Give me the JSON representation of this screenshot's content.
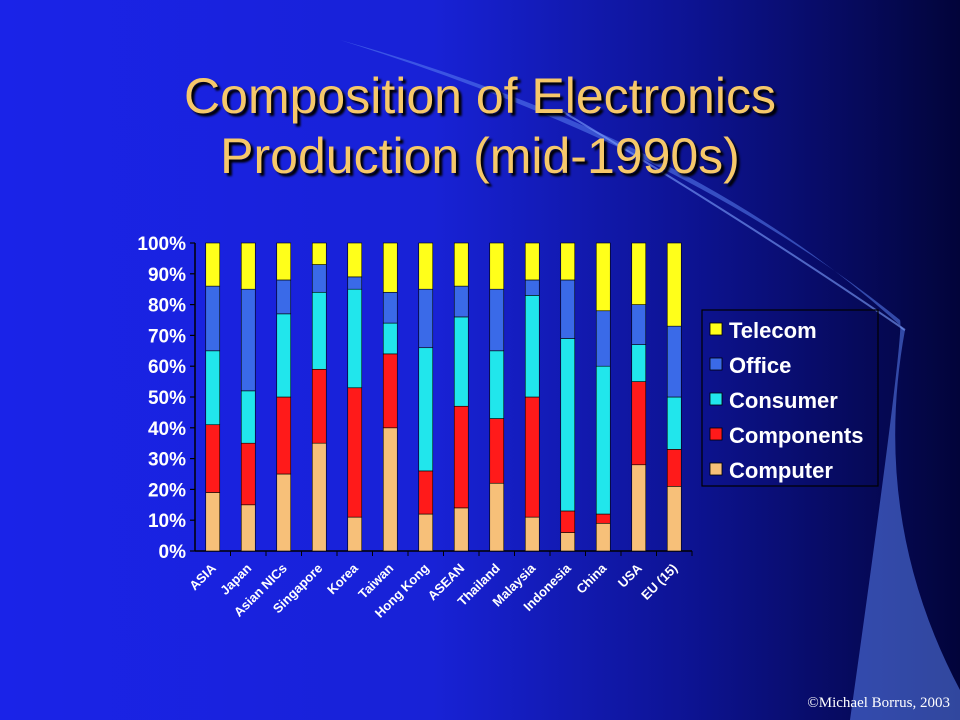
{
  "title": {
    "line1": "Composition of Electronics",
    "line2": "Production (mid-1990s)"
  },
  "copyright": "©Michael Borrus, 2003",
  "chart_data": {
    "type": "bar",
    "stacked": true,
    "title": "",
    "xlabel": "",
    "ylabel": "",
    "ylim": [
      0,
      100
    ],
    "y_ticks": [
      "0%",
      "10%",
      "20%",
      "30%",
      "40%",
      "50%",
      "60%",
      "70%",
      "80%",
      "90%",
      "100%"
    ],
    "grid": false,
    "legend_position": "right",
    "categories": [
      "ASIA",
      "Japan",
      "Asian NICs",
      "Singapore",
      "Korea",
      "Taiwan",
      "Hong Kong",
      "ASEAN",
      "Thailand",
      "Malaysia",
      "Indonesia",
      "China",
      "USA",
      "EU (15)"
    ],
    "series": [
      {
        "name": "Computer",
        "color": "#f7c079",
        "values": [
          19,
          15,
          25,
          35,
          11,
          40,
          12,
          14,
          22,
          11,
          6,
          9,
          28,
          21
        ]
      },
      {
        "name": "Components",
        "color": "#ff1a1a",
        "values": [
          22,
          20,
          25,
          24,
          42,
          24,
          14,
          33,
          21,
          39,
          7,
          3,
          27,
          12
        ]
      },
      {
        "name": "Consumer",
        "color": "#21e6ec",
        "values": [
          24,
          17,
          27,
          25,
          32,
          10,
          40,
          29,
          22,
          33,
          56,
          48,
          12,
          17
        ]
      },
      {
        "name": "Office",
        "color": "#3a6ae8",
        "values": [
          21,
          33,
          11,
          9,
          4,
          10,
          19,
          10,
          20,
          5,
          19,
          18,
          13,
          23
        ]
      },
      {
        "name": "Telecom",
        "color": "#ffff1a",
        "values": [
          14,
          15,
          12,
          7,
          11,
          16,
          15,
          14,
          15,
          12,
          12,
          22,
          20,
          27
        ]
      }
    ]
  }
}
